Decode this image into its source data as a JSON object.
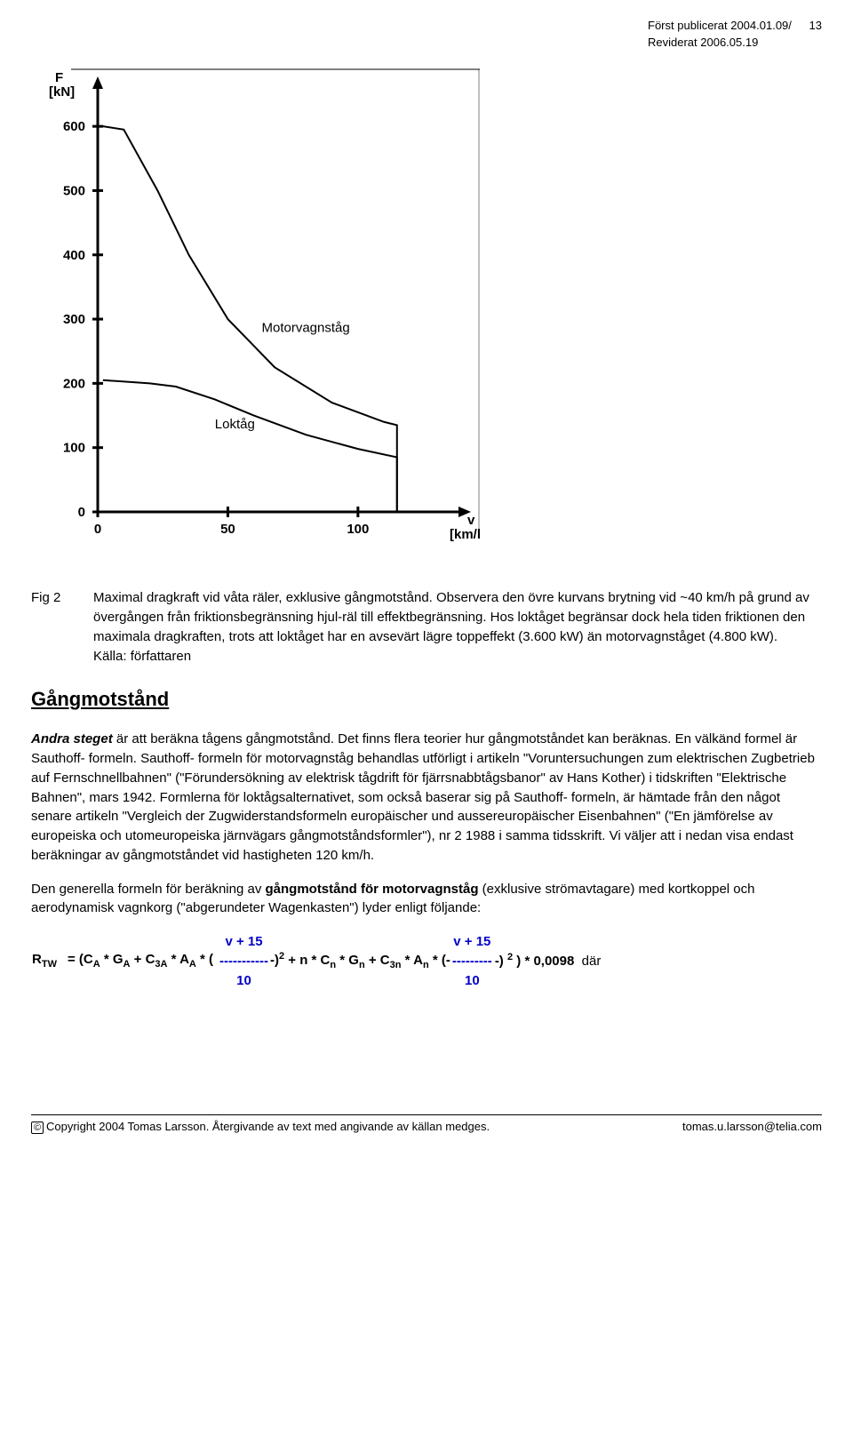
{
  "header": {
    "pub_line1": "Först publicerat 2004.01.09/",
    "pub_line2": "Reviderat 2006.05.19",
    "page_number": "13"
  },
  "chart": {
    "type": "line",
    "y_label": "F\n[kN]",
    "x_label": "v\n[km/h]",
    "x_ticks": [
      0,
      50,
      100
    ],
    "y_ticks": [
      0,
      100,
      200,
      300,
      400,
      500,
      600
    ],
    "xlim": [
      0,
      140
    ],
    "ylim": [
      0,
      650
    ],
    "background_color": "#ffffff",
    "axis_color": "#000000",
    "line_color": "#000000",
    "line_width": 2,
    "series": [
      {
        "label": "Motorvagnståg",
        "label_pos": {
          "x": 63,
          "y": 280
        },
        "points": [
          {
            "x": 2,
            "y": 600
          },
          {
            "x": 10,
            "y": 595
          },
          {
            "x": 23,
            "y": 500
          },
          {
            "x": 35,
            "y": 400
          },
          {
            "x": 50,
            "y": 300
          },
          {
            "x": 68,
            "y": 225
          },
          {
            "x": 90,
            "y": 170
          },
          {
            "x": 110,
            "y": 140
          },
          {
            "x": 115,
            "y": 135
          },
          {
            "x": 115,
            "y": 0
          }
        ]
      },
      {
        "label": "Loktåg",
        "label_pos": {
          "x": 45,
          "y": 130
        },
        "points": [
          {
            "x": 2,
            "y": 205
          },
          {
            "x": 20,
            "y": 200
          },
          {
            "x": 30,
            "y": 195
          },
          {
            "x": 45,
            "y": 175
          },
          {
            "x": 60,
            "y": 150
          },
          {
            "x": 80,
            "y": 120
          },
          {
            "x": 100,
            "y": 98
          },
          {
            "x": 115,
            "y": 85
          },
          {
            "x": 115,
            "y": 0
          }
        ]
      }
    ]
  },
  "figure": {
    "label": "Fig 2",
    "caption": "Maximal dragkraft vid våta räler, exklusive gångmotstånd. Observera den övre kurvans brytning vid ~40 km/h på grund av övergången från friktionsbegränsning hjul-räl till effektbegränsning. Hos loktåget begränsar dock hela tiden friktionen den maximala dragkraften, trots att loktåget har en avsevärt lägre toppeffekt (3.600 kW) än motorvagnståget (4.800 kW).\nKälla: författaren"
  },
  "section_title": "Gångmotstånd",
  "para1_lead": "Andra steget",
  "para1": " är att beräkna tågens gångmotstånd. Det finns flera teorier hur gångmotståndet kan beräknas. En välkänd formel är Sauthoff- formeln. Sauthoff- formeln för motorvagnståg behandlas utförligt i artikeln \"Voruntersuchungen zum elektrischen Zugbetrieb auf Fernschnellbahnen\" (\"Förundersökning av elektrisk tågdrift för fjärrsnabbtågsbanor\" av Hans Kother) i tidskriften \"Elektrische Bahnen\", mars 1942. Formlerna för loktågsalternativet, som också baserar sig på Sauthoff- formeln, är hämtade från den något senare artikeln \"Vergleich der Zugwiderstandsformeln europäischer und aussereuropäischer Eisenbahnen\" (\"En jämförelse av europeiska och utomeuropeiska järnvägars gångmotståndsformler\"), nr 2 1988 i samma tidsskrift. Vi väljer att i nedan visa endast beräkningar av gångmotståndet vid hastigheten 120 km/h.",
  "para2_pre": "Den generella formeln för beräkning av ",
  "para2_bold": "gångmotstånd för motorvagnståg",
  "para2_post": " (exklusive strömavtagare) med kortkoppel och aerodynamisk vagnkorg (\"abgerundeter Wagenkasten\") lyder enligt följande:",
  "formula": {
    "lhs": "R",
    "lhs_sub": "TW",
    "frac_num": "v + 15",
    "frac_den": "10",
    "trail": "där"
  },
  "footer": {
    "left": "Copyright 2004 Tomas Larsson. Återgivande av text med angivande av källan medges.",
    "right": "tomas.u.larsson@telia.com"
  }
}
